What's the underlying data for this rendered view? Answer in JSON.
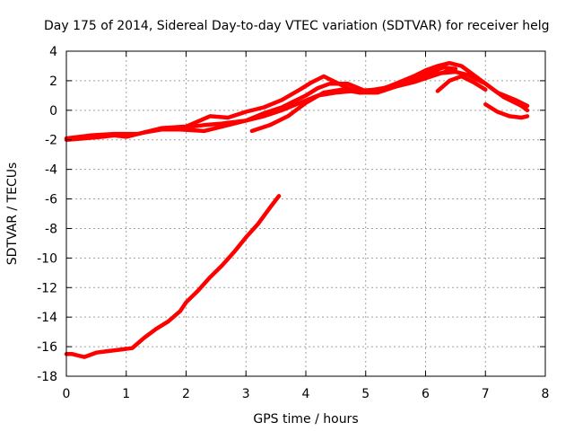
{
  "chart_data": {
    "type": "line",
    "title": "Day 175 of 2014, Sidereal Day-to-day VTEC variation (SDTVAR) for receiver helg",
    "xlabel": "GPS time / hours",
    "ylabel": "SDTVAR / TECUs",
    "xlim": [
      0,
      8
    ],
    "ylim": [
      -18,
      4
    ],
    "xticks": [
      "0",
      "1",
      "2",
      "3",
      "4",
      "5",
      "6",
      "7",
      "8"
    ],
    "yticks": [
      "-18",
      "-16",
      "-14",
      "-12",
      "-10",
      "-8",
      "-6",
      "-4",
      "-2",
      "0",
      "2",
      "4"
    ],
    "grid": true,
    "color": "#ff0000",
    "series": [
      {
        "name": "trace-1",
        "x": [
          0,
          0.3,
          0.6,
          0.8,
          1.0,
          1.3,
          1.6,
          1.9,
          2.3,
          2.6,
          3.0,
          3.3,
          3.6,
          3.9,
          4.2,
          4.5,
          4.8,
          5.2,
          5.5,
          5.8,
          6.1,
          6.4,
          6.7,
          7.0,
          7.3,
          7.6,
          7.7
        ],
        "y": [
          -2.0,
          -1.9,
          -1.8,
          -1.7,
          -1.8,
          -1.5,
          -1.3,
          -1.2,
          -1.0,
          -0.9,
          -0.7,
          -0.4,
          0.0,
          0.5,
          1.0,
          1.2,
          1.3,
          1.4,
          1.6,
          1.9,
          2.3,
          2.7,
          2.4,
          1.8,
          0.9,
          0.3,
          0.0
        ]
      },
      {
        "name": "trace-2",
        "x": [
          0,
          0.4,
          0.8,
          1.2,
          1.6,
          2.0,
          2.4,
          2.7,
          3.0,
          3.3,
          3.6,
          3.9,
          4.1,
          4.3,
          4.5,
          4.7,
          4.9,
          5.2,
          5.5,
          5.8,
          6.0,
          6.2,
          6.4,
          6.6,
          6.8,
          7.0,
          7.2,
          7.5,
          7.7
        ],
        "y": [
          -1.9,
          -1.7,
          -1.6,
          -1.6,
          -1.2,
          -1.1,
          -0.4,
          -0.5,
          -0.1,
          0.2,
          0.7,
          1.4,
          1.9,
          2.3,
          1.9,
          1.5,
          1.2,
          1.3,
          1.8,
          2.3,
          2.7,
          3.0,
          3.2,
          3.0,
          2.4,
          1.8,
          1.2,
          0.7,
          0.3
        ]
      },
      {
        "name": "trace-3",
        "x": [
          1.5,
          1.9,
          2.3,
          2.7,
          3.0,
          3.3,
          3.6,
          3.8,
          4.0,
          4.2,
          4.4,
          4.7,
          5.0,
          5.3,
          5.6,
          5.9,
          6.2,
          6.5
        ],
        "y": [
          -1.3,
          -1.3,
          -1.4,
          -1.0,
          -0.7,
          -0.2,
          0.2,
          0.6,
          1.0,
          1.5,
          1.8,
          1.8,
          1.3,
          1.5,
          1.9,
          2.2,
          2.5,
          2.6
        ]
      },
      {
        "name": "trace-4",
        "x": [
          3.1,
          3.4,
          3.7,
          4.0,
          4.3,
          4.6,
          4.9,
          5.2,
          5.5,
          5.8,
          6.1,
          6.3,
          6.5
        ],
        "y": [
          -1.4,
          -1.0,
          -0.4,
          0.5,
          1.2,
          1.4,
          1.2,
          1.2,
          1.6,
          2.1,
          2.6,
          2.9,
          2.8
        ]
      },
      {
        "name": "trace-5",
        "x": [
          6.2,
          6.4,
          6.6,
          6.8,
          7.0
        ],
        "y": [
          1.3,
          2.0,
          2.3,
          1.9,
          1.4
        ]
      },
      {
        "name": "trace-6",
        "x": [
          7.0,
          7.2,
          7.4,
          7.6,
          7.7
        ],
        "y": [
          0.4,
          -0.1,
          -0.4,
          -0.5,
          -0.4
        ]
      },
      {
        "name": "trace-7",
        "x": [
          0,
          0.1,
          0.2,
          0.3,
          0.5,
          0.7,
          0.9,
          1.1,
          1.3,
          1.5,
          1.7,
          1.9,
          2.0,
          2.2,
          2.4,
          2.6,
          2.8,
          3.0,
          3.2,
          3.4,
          3.55
        ],
        "y": [
          -16.5,
          -16.5,
          -16.6,
          -16.7,
          -16.4,
          -16.3,
          -16.2,
          -16.1,
          -15.4,
          -14.8,
          -14.3,
          -13.6,
          -13.0,
          -12.2,
          -11.3,
          -10.5,
          -9.6,
          -8.6,
          -7.7,
          -6.6,
          -5.8
        ]
      }
    ]
  }
}
